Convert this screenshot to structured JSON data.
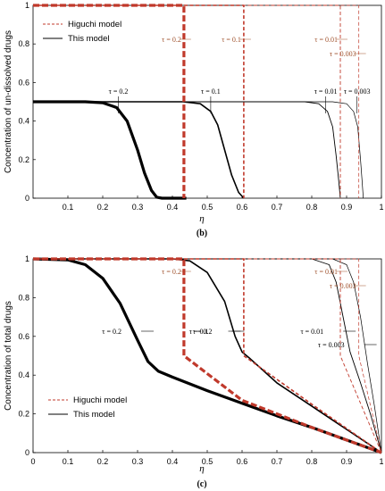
{
  "chart_data": [
    {
      "id": "b",
      "type": "line",
      "panel_label": "(b)",
      "xlabel": "η",
      "ylabel": "Concentration of un-dissolved drugs",
      "xlim": [
        0,
        1
      ],
      "ylim": [
        0,
        1
      ],
      "xticks": [
        "0.1",
        "0.2",
        "0.3",
        "0.4",
        "0.5",
        "0.6",
        "0.7",
        "0.8",
        "0.9",
        "1"
      ],
      "yticks": [
        "0",
        "0.2",
        "0.4",
        "0.6",
        "0.8",
        "1"
      ],
      "legend": {
        "position": "top-left",
        "entries": [
          "Higuchi model",
          "This model"
        ]
      },
      "annotations_model": [
        {
          "text": "τ = 0.2",
          "x": 0.245
        },
        {
          "text": "τ = 0.1",
          "x": 0.51
        },
        {
          "text": "τ = 0.01",
          "x": 0.84
        },
        {
          "text": "τ = 0.003",
          "x": 0.93
        }
      ],
      "annotations_higuchi": [
        {
          "text": "τ = 0.2",
          "x": 0.433
        },
        {
          "text": "τ = 0.1",
          "x": 0.605
        },
        {
          "text": "τ = 0.01",
          "x": 0.882
        },
        {
          "text": "τ = 0.003",
          "x": 0.935
        }
      ],
      "series": [
        {
          "model": "This model",
          "tau": "0.2",
          "width": 3.2,
          "points": [
            [
              0,
              0.5
            ],
            [
              0.15,
              0.5
            ],
            [
              0.2,
              0.495
            ],
            [
              0.24,
              0.47
            ],
            [
              0.27,
              0.4
            ],
            [
              0.3,
              0.25
            ],
            [
              0.32,
              0.13
            ],
            [
              0.34,
              0.04
            ],
            [
              0.355,
              0.005
            ],
            [
              0.37,
              0
            ],
            [
              0.44,
              0
            ]
          ]
        },
        {
          "model": "This model",
          "tau": "0.1",
          "width": 1.6,
          "points": [
            [
              0,
              0.5
            ],
            [
              0.43,
              0.5
            ],
            [
              0.48,
              0.49
            ],
            [
              0.51,
              0.45
            ],
            [
              0.53,
              0.38
            ],
            [
              0.55,
              0.25
            ],
            [
              0.57,
              0.12
            ],
            [
              0.59,
              0.03
            ],
            [
              0.605,
              0
            ]
          ]
        },
        {
          "model": "This model",
          "tau": "0.01",
          "width": 0.9,
          "points": [
            [
              0,
              0.5
            ],
            [
              0.78,
              0.5
            ],
            [
              0.82,
              0.49
            ],
            [
              0.845,
              0.45
            ],
            [
              0.86,
              0.37
            ],
            [
              0.87,
              0.22
            ],
            [
              0.877,
              0.1
            ],
            [
              0.882,
              0
            ]
          ]
        },
        {
          "model": "This model",
          "tau": "0.003",
          "width": 0.7,
          "points": [
            [
              0,
              0.5
            ],
            [
              0.86,
              0.5
            ],
            [
              0.9,
              0.49
            ],
            [
              0.92,
              0.45
            ],
            [
              0.932,
              0.37
            ],
            [
              0.94,
              0.2
            ],
            [
              0.945,
              0.08
            ],
            [
              0.948,
              0
            ]
          ]
        },
        {
          "model": "Higuchi model",
          "tau": "0.2",
          "width": 3.2,
          "points": [
            [
              0,
              1
            ],
            [
              0.433,
              1
            ],
            [
              0.433,
              0
            ]
          ]
        },
        {
          "model": "Higuchi model",
          "tau": "0.1",
          "width": 1.6,
          "points": [
            [
              0,
              1
            ],
            [
              0.605,
              1
            ],
            [
              0.605,
              0
            ]
          ]
        },
        {
          "model": "Higuchi model",
          "tau": "0.01",
          "width": 0.9,
          "points": [
            [
              0,
              1
            ],
            [
              0.882,
              1
            ],
            [
              0.882,
              0
            ]
          ]
        },
        {
          "model": "Higuchi model",
          "tau": "0.003",
          "width": 0.7,
          "points": [
            [
              0,
              1
            ],
            [
              0.935,
              1
            ],
            [
              0.935,
              0
            ]
          ]
        }
      ]
    },
    {
      "id": "c",
      "type": "line",
      "panel_label": "(c)",
      "xlabel": "η",
      "ylabel": "Concentration of total drugs",
      "xlim": [
        0,
        1
      ],
      "ylim": [
        0,
        1
      ],
      "xticks": [
        "0",
        "0.1",
        "0.2",
        "0.3",
        "0.4",
        "0.5",
        "0.6",
        "0.7",
        "0.8",
        "0.9",
        "1"
      ],
      "yticks": [
        "0",
        "0.2",
        "0.4",
        "0.6",
        "0.8",
        "1"
      ],
      "legend": {
        "position": "bottom-left",
        "entries": [
          "Higuchi model",
          "This model"
        ]
      },
      "annotations_model": [
        {
          "text": "τ = 0.2",
          "x": 0.3
        },
        {
          "text": "τ = 0.1",
          "x": 0.55
        },
        {
          "text": "τ = 0.2",
          "x": 0.56
        },
        {
          "text": "τ = 0.01",
          "x": 0.88
        },
        {
          "text": "τ = 0.003",
          "x": 0.94
        }
      ],
      "annotations_higuchi": [
        {
          "text": "τ = 0.2",
          "x": 0.433
        },
        {
          "text": "τ = 0.01",
          "x": 0.882
        },
        {
          "text": "τ = 0.003",
          "x": 0.935
        }
      ],
      "series": [
        {
          "model": "This model",
          "tau": "0.2",
          "width": 3.2,
          "points": [
            [
              0,
              1
            ],
            [
              0.1,
              0.995
            ],
            [
              0.15,
              0.97
            ],
            [
              0.2,
              0.9
            ],
            [
              0.25,
              0.77
            ],
            [
              0.3,
              0.58
            ],
            [
              0.33,
              0.47
            ],
            [
              0.36,
              0.42
            ],
            [
              0.4,
              0.39
            ],
            [
              0.5,
              0.32
            ],
            [
              0.6,
              0.255
            ],
            [
              0.7,
              0.19
            ],
            [
              0.8,
              0.13
            ],
            [
              0.9,
              0.065
            ],
            [
              1,
              0
            ]
          ]
        },
        {
          "model": "This model",
          "tau": "0.1",
          "width": 1.6,
          "points": [
            [
              0,
              1
            ],
            [
              0.4,
              1
            ],
            [
              0.45,
              0.99
            ],
            [
              0.5,
              0.93
            ],
            [
              0.55,
              0.78
            ],
            [
              0.58,
              0.6
            ],
            [
              0.6,
              0.52
            ],
            [
              0.62,
              0.49
            ],
            [
              0.7,
              0.36
            ],
            [
              0.8,
              0.24
            ],
            [
              0.9,
              0.12
            ],
            [
              1,
              0
            ]
          ]
        },
        {
          "model": "This model",
          "tau": "0.01",
          "width": 0.9,
          "points": [
            [
              0,
              1
            ],
            [
              0.8,
              1
            ],
            [
              0.85,
              0.97
            ],
            [
              0.87,
              0.88
            ],
            [
              0.89,
              0.7
            ],
            [
              0.91,
              0.52
            ],
            [
              0.94,
              0.36
            ],
            [
              0.97,
              0.19
            ],
            [
              1,
              0
            ]
          ]
        },
        {
          "model": "This model",
          "tau": "0.003",
          "width": 0.7,
          "points": [
            [
              0,
              1
            ],
            [
              0.86,
              1
            ],
            [
              0.9,
              0.97
            ],
            [
              0.92,
              0.88
            ],
            [
              0.94,
              0.7
            ],
            [
              0.96,
              0.46
            ],
            [
              0.98,
              0.24
            ],
            [
              1,
              0
            ]
          ]
        },
        {
          "model": "Higuchi model",
          "tau": "0.2",
          "width": 3.2,
          "points": [
            [
              0,
              1
            ],
            [
              0.433,
              1
            ],
            [
              0.433,
              0.5
            ],
            [
              0.6,
              0.27
            ],
            [
              0.8,
              0.13
            ],
            [
              1,
              0
            ]
          ]
        },
        {
          "model": "Higuchi model",
          "tau": "0.1",
          "width": 1.6,
          "points": [
            [
              0,
              1
            ],
            [
              0.605,
              1
            ],
            [
              0.605,
              0.5
            ],
            [
              0.8,
              0.25
            ],
            [
              1,
              0
            ]
          ]
        },
        {
          "model": "Higuchi model",
          "tau": "0.01",
          "width": 0.9,
          "points": [
            [
              0,
              1
            ],
            [
              0.882,
              1
            ],
            [
              0.882,
              0.5
            ],
            [
              1,
              0
            ]
          ]
        },
        {
          "model": "Higuchi model",
          "tau": "0.003",
          "width": 0.7,
          "points": [
            [
              0,
              1
            ],
            [
              0.935,
              1
            ],
            [
              0.935,
              0.5
            ],
            [
              1,
              0
            ]
          ]
        }
      ]
    }
  ],
  "colors": {
    "higuchi": "#c0392b",
    "model": "#000000",
    "higuchi_text": "#a0522d"
  }
}
